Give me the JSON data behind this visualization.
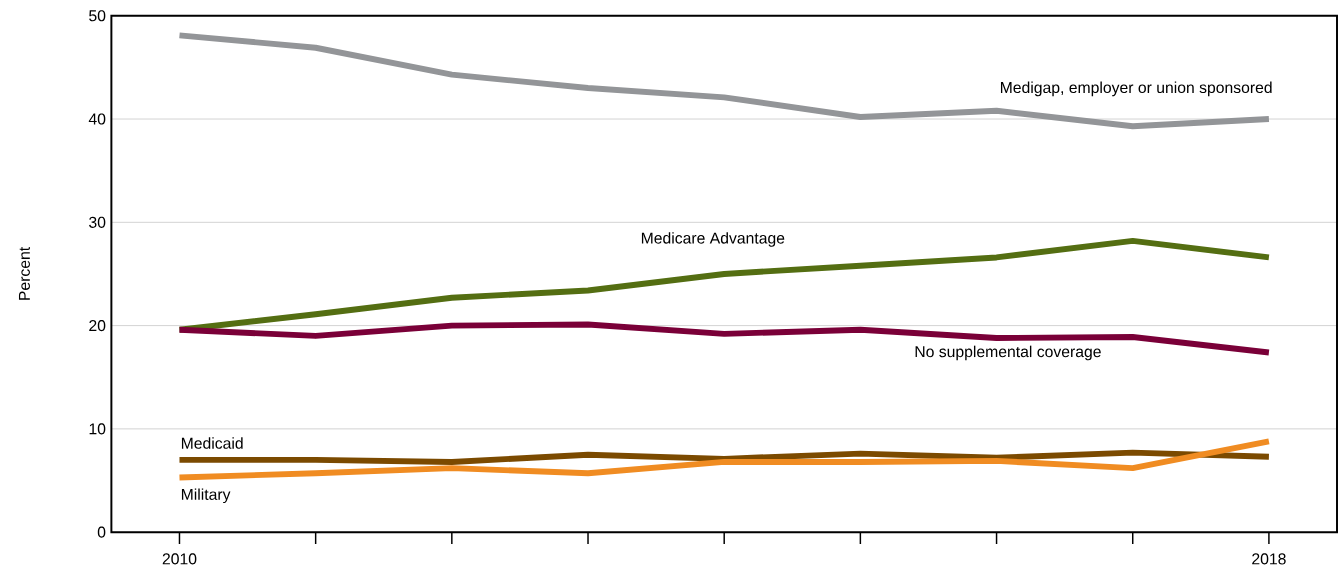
{
  "chart_data": {
    "type": "line",
    "ylabel": "Percent",
    "x": [
      2010,
      2011,
      2012,
      2013,
      2014,
      2015,
      2016,
      2017,
      2018
    ],
    "xlim": [
      2009.5,
      2018.5
    ],
    "xticks": [
      2010,
      {
        "value": 2011,
        "label": null
      },
      {
        "value": 2012,
        "label": null
      },
      {
        "value": 2013,
        "label": null
      },
      {
        "value": 2014,
        "label": null
      },
      {
        "value": 2015,
        "label": null
      },
      {
        "value": 2016,
        "label": null
      },
      {
        "value": 2017,
        "label": null
      },
      2018
    ],
    "ylim": [
      0,
      50
    ],
    "yticks": [
      0,
      10,
      20,
      30,
      40,
      50
    ],
    "grid": "y",
    "legend": false,
    "marker": "none",
    "line_style": "solid",
    "series": [
      {
        "name": "Medigap, employer or union sponsored",
        "color": "#939598",
        "values": [
          48.1,
          46.9,
          44.3,
          43.0,
          42.1,
          40.2,
          40.8,
          39.3,
          40.0
        ]
      },
      {
        "name": "Medicare Advantage",
        "color": "#546e12",
        "values": [
          19.6,
          21.1,
          22.7,
          23.4,
          25.0,
          25.8,
          26.6,
          28.2,
          26.6
        ]
      },
      {
        "name": "No supplemental coverage",
        "color": "#7a0038",
        "values": [
          19.6,
          19.0,
          20.0,
          20.1,
          19.2,
          19.6,
          18.8,
          18.9,
          17.4
        ]
      },
      {
        "name": "Medicaid",
        "color": "#7b4a00",
        "values": [
          7.0,
          7.0,
          6.8,
          7.5,
          7.1,
          7.6,
          7.2,
          7.7,
          7.3
        ]
      },
      {
        "name": "Military",
        "color": "#f08c22",
        "values": [
          5.3,
          5.7,
          6.2,
          5.7,
          6.8,
          6.8,
          6.9,
          6.2,
          8.8
        ]
      }
    ]
  }
}
